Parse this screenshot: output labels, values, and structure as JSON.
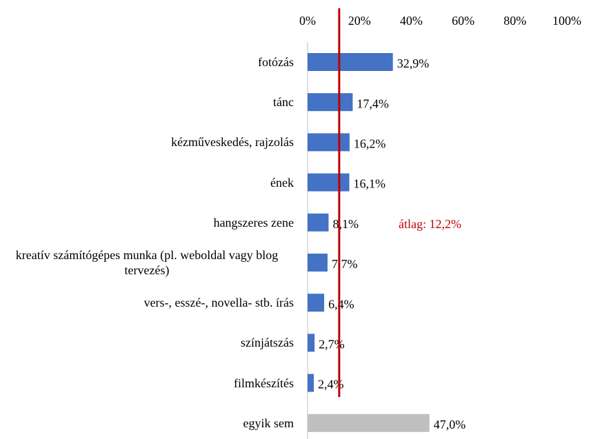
{
  "chart_data": {
    "type": "bar",
    "orientation": "horizontal",
    "categories": [
      "fotózás",
      "tánc",
      "kézműveskedés, rajzolás",
      "ének",
      "hangszeres zene",
      "kreatív számítógépes munka (pl. weboldal vagy blog tervezés)",
      "vers-, esszé-, novella- stb. írás",
      "színjátszás",
      "filmkészítés",
      "egyik sem"
    ],
    "values": [
      32.9,
      17.4,
      16.2,
      16.1,
      8.1,
      7.7,
      6.4,
      2.7,
      2.4,
      47.0
    ],
    "value_labels": [
      "32,9%",
      "17,4%",
      "16,2%",
      "16,1%",
      "8,1%",
      "7,7%",
      "6,4%",
      "2,7%",
      "2,4%",
      "47,0%"
    ],
    "colors": [
      "#4472c4",
      "#4472c4",
      "#4472c4",
      "#4472c4",
      "#4472c4",
      "#4472c4",
      "#4472c4",
      "#4472c4",
      "#4472c4",
      "#bfbfbf"
    ],
    "xlim": [
      0,
      100
    ],
    "xticks": [
      {
        "value": 0,
        "label": "0%"
      },
      {
        "value": 20,
        "label": "20%"
      },
      {
        "value": 40,
        "label": "40%"
      },
      {
        "value": 60,
        "label": "60%"
      },
      {
        "value": 80,
        "label": "80%"
      },
      {
        "value": 100,
        "label": "100%"
      }
    ],
    "reference_line": {
      "value": 12.2,
      "label": "átlag: 12,2%",
      "color": "#c00000"
    }
  }
}
